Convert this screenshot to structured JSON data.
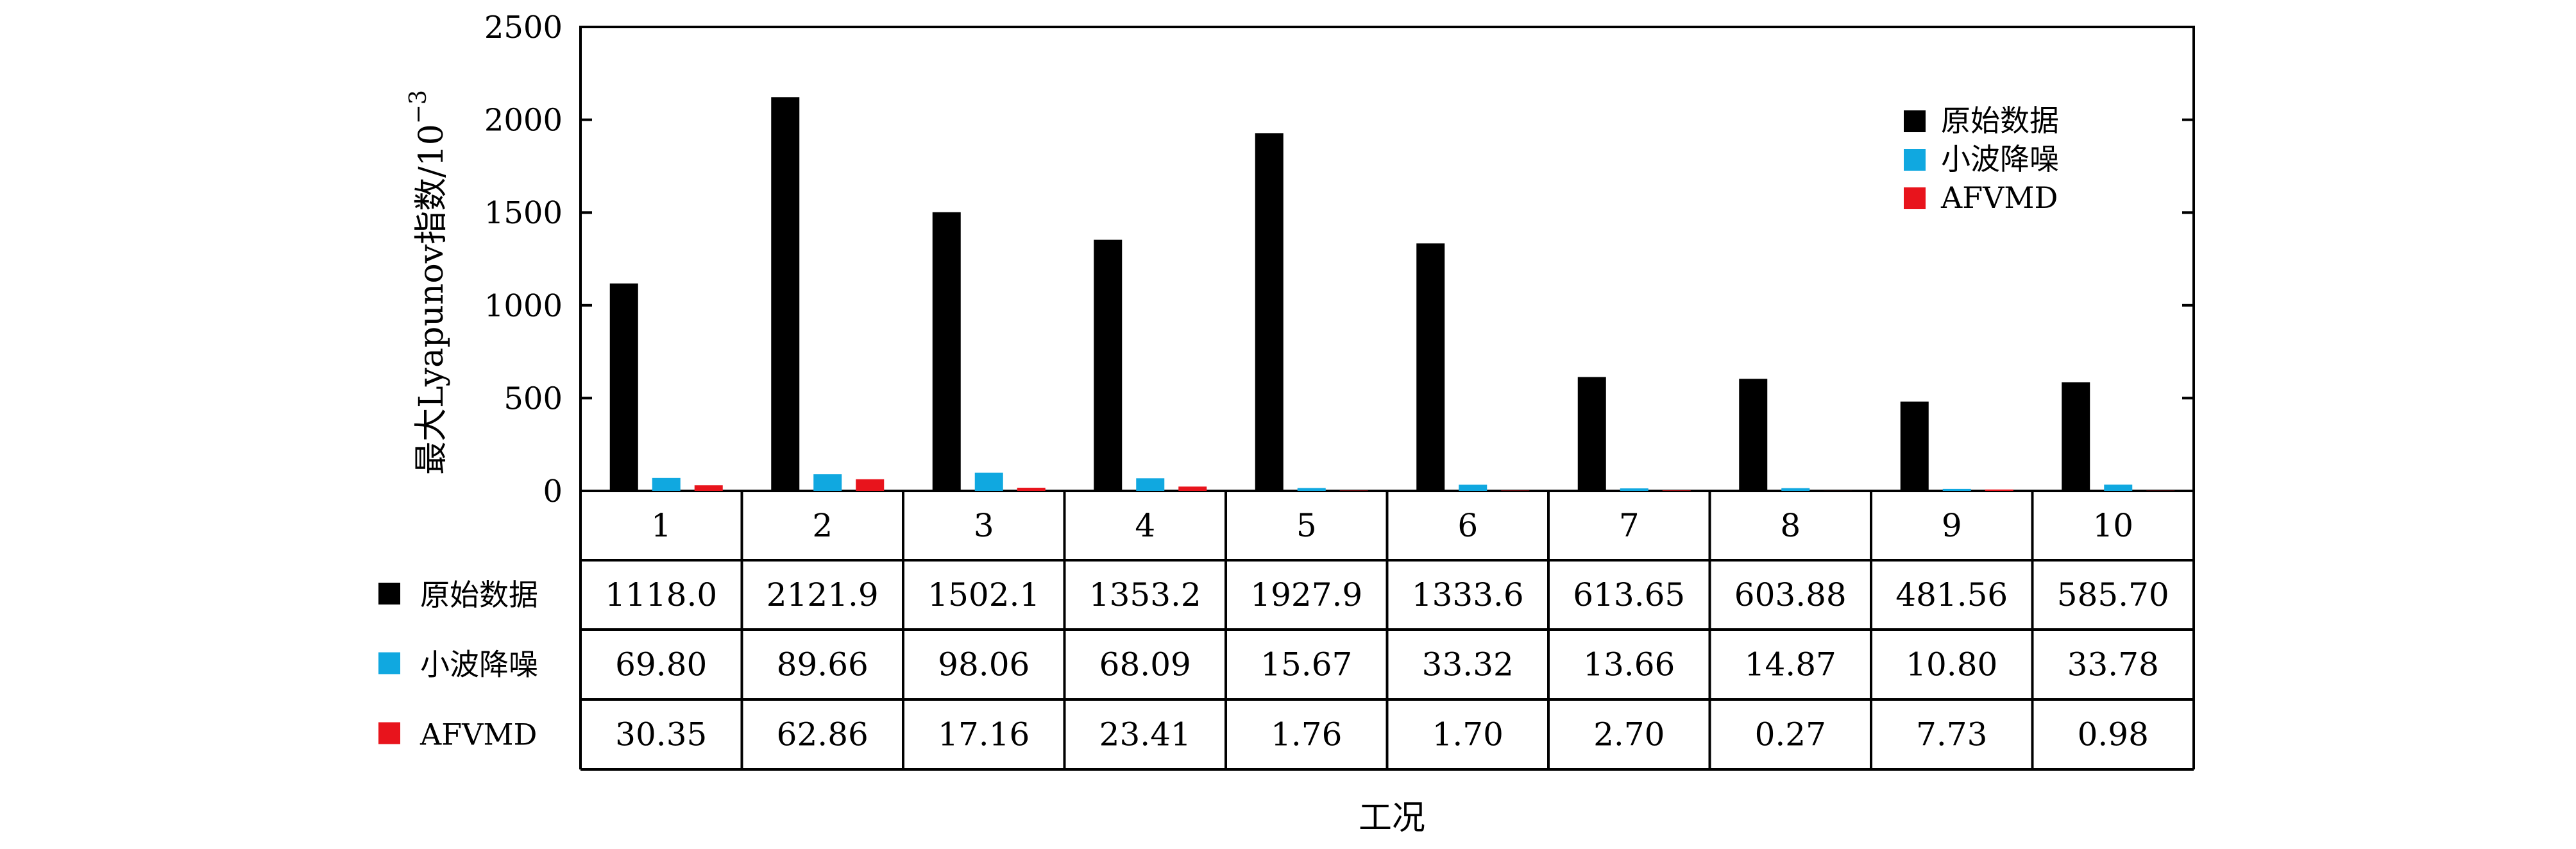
{
  "chart_data": {
    "type": "bar",
    "ylabel": "最大Lyapunov指数/10",
    "ylabel_exponent": "−3",
    "xlabel": "工况",
    "ylim": [
      0,
      2500
    ],
    "yticks": [
      0,
      500,
      1000,
      1500,
      2000,
      2500
    ],
    "categories": [
      "1",
      "2",
      "3",
      "4",
      "5",
      "6",
      "7",
      "8",
      "9",
      "10"
    ],
    "legend_position": "top-right",
    "series": [
      {
        "name": "原始数据",
        "color": "#000000",
        "values": [
          1118.0,
          2121.9,
          1502.1,
          1353.2,
          1927.9,
          1333.6,
          613.65,
          603.88,
          481.56,
          585.7
        ],
        "labels": [
          "1118.0",
          "2121.9",
          "1502.1",
          "1353.2",
          "1927.9",
          "1333.6",
          "613.65",
          "603.88",
          "481.56",
          "585.70"
        ]
      },
      {
        "name": "小波降噪",
        "color": "#10a8e0",
        "values": [
          69.8,
          89.66,
          98.06,
          68.09,
          15.67,
          33.32,
          13.66,
          14.87,
          10.8,
          33.78
        ],
        "labels": [
          "69.80",
          "89.66",
          "98.06",
          "68.09",
          "15.67",
          "33.32",
          "13.66",
          "14.87",
          "10.80",
          "33.78"
        ]
      },
      {
        "name": "AFVMD",
        "color": "#e8141c",
        "values": [
          30.35,
          62.86,
          17.16,
          23.41,
          1.76,
          1.7,
          2.7,
          0.27,
          7.73,
          0.98
        ],
        "labels": [
          "30.35",
          "62.86",
          "17.16",
          "23.41",
          "1.76",
          "1.70",
          "2.70",
          "0.27",
          "7.73",
          "0.98"
        ]
      }
    ]
  }
}
